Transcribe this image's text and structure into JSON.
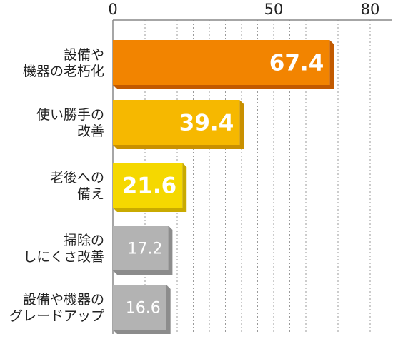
{
  "chart_data": {
    "type": "bar",
    "orientation": "horizontal",
    "categories": [
      [
        "設備や",
        "機器の老朽化"
      ],
      [
        "使い勝手の",
        "改善"
      ],
      [
        "老後への",
        "備え"
      ],
      [
        "掃除の",
        "しにくさ改善"
      ],
      [
        "設備や機器の",
        "グレードアップ"
      ]
    ],
    "values": [
      67.4,
      39.4,
      21.6,
      17.2,
      16.6
    ],
    "value_labels": [
      "67.4",
      "39.4",
      "21.6",
      "17.2",
      "16.6"
    ],
    "bar_colors": [
      "#F28400",
      "#F6B800",
      "#F5D800",
      "#B3B3B3",
      "#B3B3B3"
    ],
    "bar_shadow_colors": [
      "#C25A00",
      "#C99000",
      "#C9AA00",
      "#8C8C8C",
      "#8C8C8C"
    ],
    "label_styles": [
      "large",
      "large",
      "large",
      "small",
      "small"
    ],
    "x_ticks": [
      0,
      50,
      80
    ],
    "xlim": [
      0,
      80
    ],
    "grid": true,
    "grid_style": "dotted vertical every 5 units",
    "axis_position": "top",
    "legend": "none",
    "title": "",
    "xlabel": "",
    "ylabel": ""
  }
}
